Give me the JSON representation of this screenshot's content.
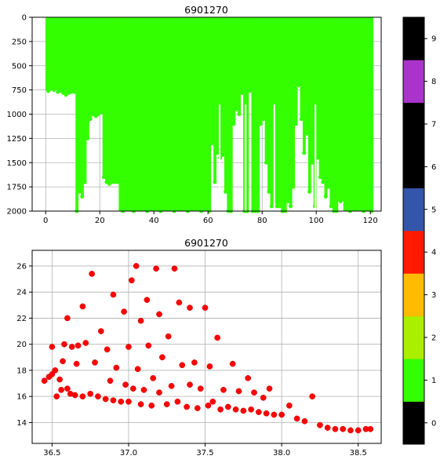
{
  "colors": {
    "profile_fill": "#33ff00",
    "scatter_point": "#ff0000",
    "scatter_edge": "#cc0000",
    "grid": "#b0b0b0"
  },
  "chart_data": [
    {
      "type": "area",
      "title": "6901270",
      "xlabel": "",
      "ylabel": "",
      "xlim": [
        -5,
        124
      ],
      "ylim": [
        2000,
        0
      ],
      "y_inverted": true,
      "grid": true,
      "x_ticks": [
        "0",
        "20",
        "40",
        "60",
        "80",
        "100",
        "120"
      ],
      "y_ticks": [
        "0",
        "250",
        "500",
        "750",
        "1000",
        "1250",
        "1500",
        "1750",
        "2000"
      ],
      "fill_color_class": "1",
      "bottom_depth_by_profile": {
        "x": [
          0,
          2,
          4,
          5,
          6,
          7,
          8,
          9,
          10,
          11,
          12,
          13,
          14,
          15,
          16,
          17,
          18,
          19,
          20,
          21,
          22,
          23,
          24,
          25,
          26,
          27,
          30,
          35,
          40,
          45,
          50,
          55,
          60,
          61,
          62,
          63,
          64,
          65,
          66,
          67,
          68,
          69,
          70,
          71,
          72,
          73,
          74,
          75,
          76,
          77,
          78,
          79,
          80,
          81,
          82,
          83,
          84,
          85,
          86,
          87,
          88,
          89,
          90,
          91,
          92,
          93,
          94,
          95,
          96,
          97,
          98,
          99,
          100,
          101,
          102,
          103,
          104,
          105,
          106,
          107,
          108,
          110,
          115,
          120,
          121
        ],
        "y": [
          760,
          750,
          770,
          760,
          780,
          800,
          780,
          770,
          770,
          2000,
          1800,
          1850,
          1700,
          1250,
          1050,
          1000,
          1020,
          1000,
          980,
          1650,
          1700,
          1720,
          1700,
          1700,
          1700,
          2000,
          2000,
          2000,
          2000,
          2000,
          2000,
          2000,
          2000,
          1300,
          1700,
          1400,
          1450,
          1420,
          1800,
          2000,
          2000,
          1100,
          950,
          1000,
          780,
          2000,
          2000,
          760,
          2000,
          2000,
          2000,
          1100,
          1050,
          1500,
          1800,
          1950,
          1900,
          1950,
          1950,
          2000,
          2000,
          1900,
          1950,
          1750,
          1100,
          700,
          1050,
          1400,
          1200,
          1800,
          1500,
          1950,
          1450,
          1650,
          1700,
          1850,
          1750,
          1950,
          2000,
          2000,
          1900,
          2000,
          2000,
          2000,
          2000
        ]
      }
    },
    {
      "type": "scatter",
      "title": "6901270",
      "xlabel": "",
      "ylabel": "",
      "xlim": [
        36.37,
        38.65
      ],
      "ylim": [
        12.4,
        27.2
      ],
      "grid": true,
      "x_ticks": [
        "36.5",
        "37.0",
        "37.5",
        "38.0",
        "38.5"
      ],
      "y_ticks": [
        "14",
        "16",
        "18",
        "20",
        "22",
        "24",
        "26"
      ],
      "point_color_class": "4",
      "points": [
        [
          36.45,
          17.2
        ],
        [
          36.48,
          17.5
        ],
        [
          36.5,
          17.7
        ],
        [
          36.5,
          19.8
        ],
        [
          36.52,
          18.0
        ],
        [
          36.53,
          16.0
        ],
        [
          36.55,
          17.3
        ],
        [
          36.56,
          16.5
        ],
        [
          36.57,
          18.7
        ],
        [
          36.58,
          20.0
        ],
        [
          36.6,
          16.6
        ],
        [
          36.6,
          22.0
        ],
        [
          36.62,
          16.2
        ],
        [
          36.63,
          19.8
        ],
        [
          36.65,
          16.1
        ],
        [
          36.66,
          18.5
        ],
        [
          36.67,
          19.9
        ],
        [
          36.7,
          16.0
        ],
        [
          36.7,
          22.9
        ],
        [
          36.72,
          20.1
        ],
        [
          36.75,
          16.2
        ],
        [
          36.76,
          25.4
        ],
        [
          36.78,
          18.6
        ],
        [
          36.8,
          16.0
        ],
        [
          36.82,
          21.0
        ],
        [
          36.85,
          15.8
        ],
        [
          36.86,
          19.6
        ],
        [
          36.88,
          17.2
        ],
        [
          36.9,
          15.7
        ],
        [
          36.9,
          23.8
        ],
        [
          36.92,
          18.2
        ],
        [
          36.95,
          15.6
        ],
        [
          36.97,
          22.5
        ],
        [
          36.98,
          16.9
        ],
        [
          37.0,
          15.6
        ],
        [
          37.0,
          19.8
        ],
        [
          37.02,
          24.9
        ],
        [
          37.03,
          16.6
        ],
        [
          37.05,
          26.0
        ],
        [
          37.06,
          18.1
        ],
        [
          37.08,
          15.4
        ],
        [
          37.08,
          21.8
        ],
        [
          37.1,
          16.5
        ],
        [
          37.12,
          23.4
        ],
        [
          37.13,
          19.9
        ],
        [
          37.15,
          15.3
        ],
        [
          37.16,
          17.4
        ],
        [
          37.18,
          25.8
        ],
        [
          37.2,
          16.3
        ],
        [
          37.2,
          22.3
        ],
        [
          37.22,
          19.0
        ],
        [
          37.25,
          15.4
        ],
        [
          37.26,
          20.6
        ],
        [
          37.28,
          16.8
        ],
        [
          37.3,
          25.8
        ],
        [
          37.32,
          15.6
        ],
        [
          37.33,
          23.2
        ],
        [
          37.35,
          18.4
        ],
        [
          37.38,
          15.2
        ],
        [
          37.4,
          16.9
        ],
        [
          37.4,
          22.8
        ],
        [
          37.43,
          18.6
        ],
        [
          37.45,
          15.1
        ],
        [
          37.47,
          16.6
        ],
        [
          37.5,
          22.8
        ],
        [
          37.52,
          15.3
        ],
        [
          37.53,
          18.3
        ],
        [
          37.55,
          15.6
        ],
        [
          37.58,
          20.5
        ],
        [
          37.6,
          15.0
        ],
        [
          37.62,
          16.5
        ],
        [
          37.65,
          15.2
        ],
        [
          37.68,
          18.5
        ],
        [
          37.7,
          15.0
        ],
        [
          37.72,
          16.4
        ],
        [
          37.75,
          14.9
        ],
        [
          37.78,
          17.4
        ],
        [
          37.8,
          15.0
        ],
        [
          37.82,
          16.3
        ],
        [
          37.85,
          14.8
        ],
        [
          37.88,
          15.9
        ],
        [
          37.9,
          14.7
        ],
        [
          37.92,
          16.6
        ],
        [
          37.95,
          14.6
        ],
        [
          38.0,
          14.6
        ],
        [
          38.05,
          15.3
        ],
        [
          38.1,
          14.3
        ],
        [
          38.15,
          14.1
        ],
        [
          38.2,
          16.0
        ],
        [
          38.25,
          13.8
        ],
        [
          38.3,
          13.6
        ],
        [
          38.35,
          13.5
        ],
        [
          38.4,
          13.5
        ],
        [
          38.45,
          13.4
        ],
        [
          38.5,
          13.4
        ],
        [
          38.55,
          13.5
        ],
        [
          38.58,
          13.5
        ]
      ]
    }
  ],
  "colorbar": {
    "ticks": [
      "0",
      "1",
      "2",
      "3",
      "4",
      "5",
      "6",
      "7",
      "8",
      "9"
    ],
    "colors": [
      "#000000",
      "#33ff00",
      "#aaee00",
      "#ffbb00",
      "#ff1a00",
      "#3355aa",
      "#000000",
      "#000000",
      "#aa33cc",
      "#000000"
    ]
  }
}
